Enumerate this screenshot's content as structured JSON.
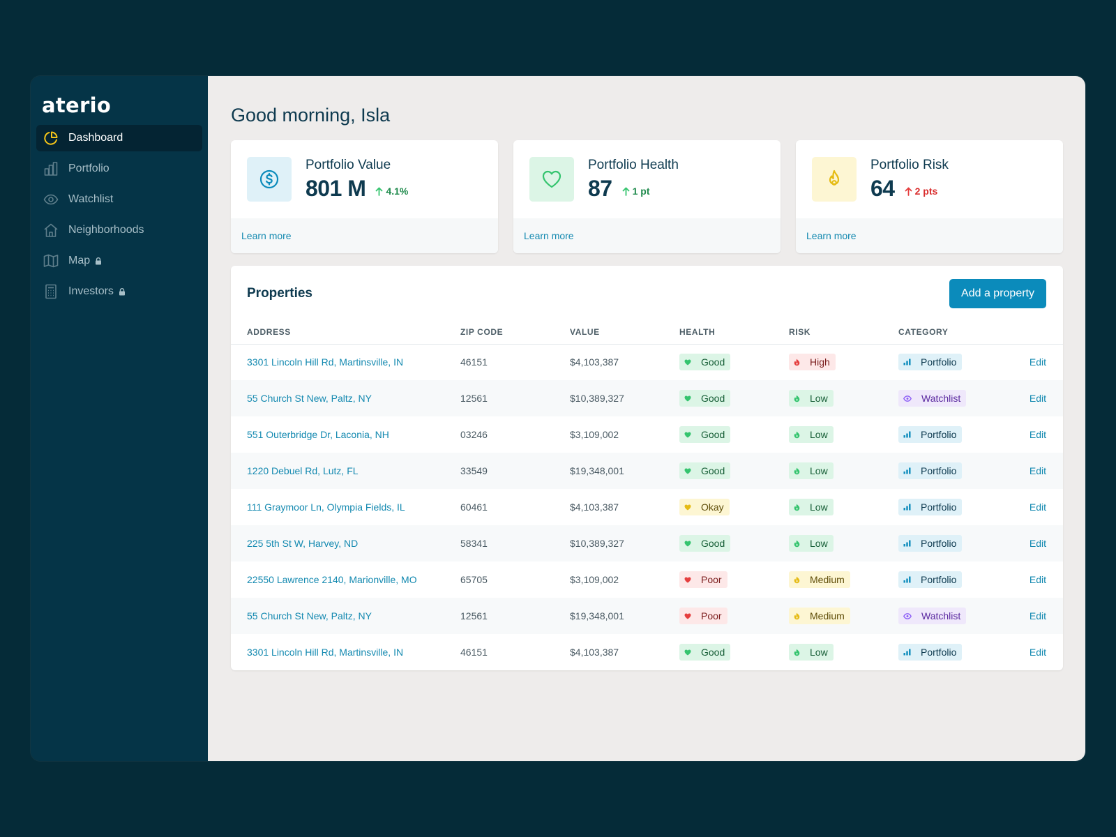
{
  "app": {
    "logo": "aterio"
  },
  "sidebar": {
    "items": [
      {
        "label": "Dashboard",
        "icon": "pie-chart-icon",
        "active": true,
        "locked": false
      },
      {
        "label": "Portfolio",
        "icon": "bar-chart-icon",
        "active": false,
        "locked": false
      },
      {
        "label": "Watchlist",
        "icon": "eye-icon",
        "active": false,
        "locked": false
      },
      {
        "label": "Neighborhoods",
        "icon": "home-icon",
        "active": false,
        "locked": false
      },
      {
        "label": "Map",
        "icon": "map-icon",
        "active": false,
        "locked": true
      },
      {
        "label": "Investors",
        "icon": "calculator-icon",
        "active": false,
        "locked": true
      }
    ]
  },
  "main": {
    "greeting": "Good morning, Isla",
    "stats": [
      {
        "label": "Portfolio Value",
        "value": "801 M",
        "delta": "4.1%",
        "direction": "up",
        "delta_color": "#1f8a4c",
        "icon": "dollar-icon",
        "icon_bg": "#dff1f8",
        "icon_color": "#0b8bbb",
        "link": "Learn more"
      },
      {
        "label": "Portfolio Health",
        "value": "87",
        "delta": "1 pt",
        "direction": "up",
        "delta_color": "#1f8a4c",
        "icon": "heart-icon",
        "icon_bg": "#dcf5e6",
        "icon_color": "#34c46e",
        "link": "Learn more"
      },
      {
        "label": "Portfolio Risk",
        "value": "64",
        "delta": "2 pts",
        "direction": "up",
        "delta_color": "#d92d2d",
        "icon": "flame-icon",
        "icon_bg": "#fdf6d3",
        "icon_color": "#e5bb14",
        "link": "Learn more"
      }
    ],
    "properties": {
      "title": "Properties",
      "add_button": "Add a property",
      "columns": [
        "ADDRESS",
        "ZIP CODE",
        "VALUE",
        "HEALTH",
        "RISK",
        "CATEGORY"
      ],
      "edit_label": "Edit",
      "rows": [
        {
          "address": "3301 Lincoln Hill Rd, Martinsville, IN",
          "zip": "46151",
          "value": "$4,103,387",
          "health": "Good",
          "risk": "High",
          "category": "Portfolio"
        },
        {
          "address": "55 Church St New, Paltz, NY",
          "zip": "12561",
          "value": "$10,389,327",
          "health": "Good",
          "risk": "Low",
          "category": "Watchlist"
        },
        {
          "address": "551 Outerbridge Dr, Laconia, NH",
          "zip": "03246",
          "value": "$3,109,002",
          "health": "Good",
          "risk": "Low",
          "category": "Portfolio"
        },
        {
          "address": "1220 Debuel Rd, Lutz, FL",
          "zip": "33549",
          "value": "$19,348,001",
          "health": "Good",
          "risk": "Low",
          "category": "Portfolio"
        },
        {
          "address": "111 Graymoor Ln, Olympia Fields, IL",
          "zip": "60461",
          "value": "$4,103,387",
          "health": "Okay",
          "risk": "Low",
          "category": "Portfolio"
        },
        {
          "address": "225 5th St W, Harvey, ND",
          "zip": "58341",
          "value": "$10,389,327",
          "health": "Good",
          "risk": "Low",
          "category": "Portfolio"
        },
        {
          "address": "22550 Lawrence 2140, Marionville, MO",
          "zip": "65705",
          "value": "$3,109,002",
          "health": "Poor",
          "risk": "Medium",
          "category": "Portfolio"
        },
        {
          "address": "55 Church St New, Paltz, NY",
          "zip": "12561",
          "value": "$19,348,001",
          "health": "Poor",
          "risk": "Medium",
          "category": "Watchlist"
        },
        {
          "address": "3301 Lincoln Hill Rd, Martinsville, IN",
          "zip": "46151",
          "value": "$4,103,387",
          "health": "Good",
          "risk": "Low",
          "category": "Portfolio"
        }
      ]
    }
  },
  "colors": {
    "background": "#052b38",
    "sidebar": "#053447",
    "accent": "#0b8bbb",
    "link": "#1389b0",
    "good": "#34c46e",
    "okay": "#e5bb14",
    "poor": "#e53e3e",
    "watchlist": "#8b5cf6"
  }
}
